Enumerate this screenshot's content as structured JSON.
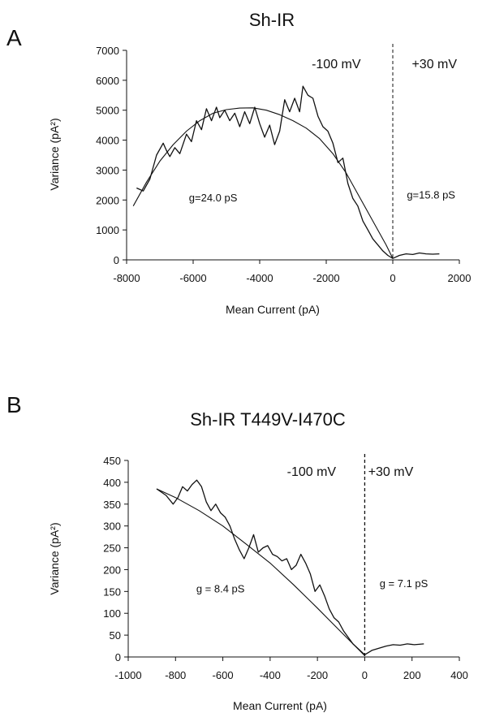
{
  "chart_data": [
    {
      "panel_label": "A",
      "type": "line",
      "title": "Sh-IR",
      "xlabel": "Mean Current (pA)",
      "ylabel": "Variance (pA²)",
      "xlim": [
        -8000,
        2000
      ],
      "ylim": [
        0,
        7000
      ],
      "xticks": [
        -8000,
        -6000,
        -4000,
        -2000,
        0,
        2000
      ],
      "yticks": [
        0,
        1000,
        2000,
        3000,
        4000,
        5000,
        6000,
        7000
      ],
      "xtick_labels": [
        "-8000",
        "-6000",
        "-4000",
        "-2000",
        "0",
        "2000"
      ],
      "ytick_labels": [
        "0",
        "1000",
        "2000",
        "3000",
        "4000",
        "5000",
        "6000",
        "7000"
      ],
      "grid": false,
      "vline_x": 0,
      "annotations": [
        {
          "text": "-100 mV",
          "x": -1700,
          "y": 6400
        },
        {
          "text": "+30 mV",
          "x": 1250,
          "y": 6400
        },
        {
          "text": "g=24.0 pS",
          "x": -5400,
          "y": 1950
        },
        {
          "text": "g=15.8 pS",
          "x": 1150,
          "y": 2050
        }
      ],
      "series": [
        {
          "kind": "data",
          "points": [
            [
              -7700,
              2400
            ],
            [
              -7500,
              2300
            ],
            [
              -7300,
              2700
            ],
            [
              -7100,
              3500
            ],
            [
              -6900,
              3900
            ],
            [
              -6800,
              3650
            ],
            [
              -6700,
              3450
            ],
            [
              -6550,
              3750
            ],
            [
              -6400,
              3550
            ],
            [
              -6200,
              4200
            ],
            [
              -6050,
              3950
            ],
            [
              -5900,
              4650
            ],
            [
              -5750,
              4350
            ],
            [
              -5600,
              5050
            ],
            [
              -5450,
              4650
            ],
            [
              -5300,
              5100
            ],
            [
              -5200,
              4750
            ],
            [
              -5050,
              5000
            ],
            [
              -4900,
              4650
            ],
            [
              -4750,
              4900
            ],
            [
              -4600,
              4450
            ],
            [
              -4450,
              4950
            ],
            [
              -4300,
              4550
            ],
            [
              -4150,
              5100
            ],
            [
              -4000,
              4550
            ],
            [
              -3850,
              4100
            ],
            [
              -3700,
              4500
            ],
            [
              -3550,
              3850
            ],
            [
              -3400,
              4300
            ],
            [
              -3250,
              5350
            ],
            [
              -3100,
              4950
            ],
            [
              -2950,
              5400
            ],
            [
              -2800,
              4950
            ],
            [
              -2700,
              5800
            ],
            [
              -2550,
              5500
            ],
            [
              -2400,
              5400
            ],
            [
              -2250,
              4800
            ],
            [
              -2100,
              4450
            ],
            [
              -1950,
              4300
            ],
            [
              -1800,
              3900
            ],
            [
              -1650,
              3250
            ],
            [
              -1500,
              3400
            ],
            [
              -1350,
              2550
            ],
            [
              -1200,
              2050
            ],
            [
              -1050,
              1800
            ],
            [
              -900,
              1300
            ],
            [
              -750,
              1000
            ],
            [
              -600,
              700
            ],
            [
              -450,
              500
            ],
            [
              -300,
              300
            ],
            [
              -150,
              150
            ],
            [
              0,
              50
            ],
            [
              200,
              150
            ],
            [
              400,
              200
            ],
            [
              600,
              180
            ],
            [
              800,
              230
            ],
            [
              1000,
              200
            ],
            [
              1200,
              190
            ],
            [
              1400,
              200
            ]
          ]
        },
        {
          "kind": "fit",
          "points": [
            [
              -7800,
              1800
            ],
            [
              -7400,
              2600
            ],
            [
              -7000,
              3300
            ],
            [
              -6600,
              3850
            ],
            [
              -6200,
              4300
            ],
            [
              -5800,
              4650
            ],
            [
              -5400,
              4900
            ],
            [
              -5000,
              5020
            ],
            [
              -4600,
              5070
            ],
            [
              -4200,
              5080
            ],
            [
              -3800,
              5000
            ],
            [
              -3400,
              4850
            ],
            [
              -3000,
              4650
            ],
            [
              -2600,
              4400
            ],
            [
              -2200,
              4050
            ],
            [
              -1800,
              3550
            ],
            [
              -1400,
              2900
            ],
            [
              -1000,
              2100
            ],
            [
              -600,
              1300
            ],
            [
              -200,
              500
            ],
            [
              0,
              50
            ]
          ]
        }
      ]
    },
    {
      "panel_label": "B",
      "type": "line",
      "title": "Sh-IR T449V-I470C",
      "xlabel": "Mean Current (pA)",
      "ylabel": "Variance (pA²)",
      "xlim": [
        -1000,
        400
      ],
      "ylim": [
        0,
        450
      ],
      "xticks": [
        -1000,
        -800,
        -600,
        -400,
        -200,
        0,
        200,
        400
      ],
      "yticks": [
        0,
        50,
        100,
        150,
        200,
        250,
        300,
        350,
        400,
        450
      ],
      "xtick_labels": [
        "-1000",
        "-800",
        "-600",
        "-400",
        "-200",
        "0",
        "200",
        "400"
      ],
      "ytick_labels": [
        "0",
        "50",
        "100",
        "150",
        "200",
        "250",
        "300",
        "350",
        "400",
        "450"
      ],
      "grid": false,
      "vline_x": 0,
      "annotations": [
        {
          "text": "-100 mV",
          "x": -225,
          "y": 415
        },
        {
          "text": "+30 mV",
          "x": 110,
          "y": 415
        },
        {
          "text": "g = 8.4 pS",
          "x": -610,
          "y": 148
        },
        {
          "text": "g = 7.1 pS",
          "x": 165,
          "y": 160
        }
      ],
      "series": [
        {
          "kind": "data",
          "points": [
            [
              -880,
              385
            ],
            [
              -840,
              370
            ],
            [
              -810,
              350
            ],
            [
              -790,
              365
            ],
            [
              -770,
              390
            ],
            [
              -750,
              380
            ],
            [
              -730,
              395
            ],
            [
              -710,
              405
            ],
            [
              -690,
              390
            ],
            [
              -670,
              355
            ],
            [
              -650,
              335
            ],
            [
              -630,
              350
            ],
            [
              -610,
              330
            ],
            [
              -590,
              320
            ],
            [
              -570,
              300
            ],
            [
              -550,
              270
            ],
            [
              -530,
              245
            ],
            [
              -510,
              225
            ],
            [
              -490,
              250
            ],
            [
              -470,
              280
            ],
            [
              -450,
              240
            ],
            [
              -430,
              250
            ],
            [
              -410,
              255
            ],
            [
              -390,
              235
            ],
            [
              -370,
              230
            ],
            [
              -350,
              220
            ],
            [
              -330,
              225
            ],
            [
              -310,
              200
            ],
            [
              -290,
              210
            ],
            [
              -270,
              235
            ],
            [
              -250,
              215
            ],
            [
              -230,
              190
            ],
            [
              -210,
              150
            ],
            [
              -190,
              165
            ],
            [
              -170,
              140
            ],
            [
              -150,
              110
            ],
            [
              -130,
              90
            ],
            [
              -110,
              80
            ],
            [
              -90,
              60
            ],
            [
              -70,
              45
            ],
            [
              -50,
              30
            ],
            [
              -30,
              20
            ],
            [
              -10,
              10
            ],
            [
              0,
              5
            ],
            [
              30,
              15
            ],
            [
              60,
              20
            ],
            [
              90,
              25
            ],
            [
              120,
              28
            ],
            [
              150,
              27
            ],
            [
              180,
              30
            ],
            [
              210,
              28
            ],
            [
              250,
              30
            ]
          ]
        },
        {
          "kind": "fit",
          "points": [
            [
              -880,
              385
            ],
            [
              -800,
              365
            ],
            [
              -700,
              335
            ],
            [
              -600,
              300
            ],
            [
              -500,
              258
            ],
            [
              -400,
              215
            ],
            [
              -300,
              165
            ],
            [
              -200,
              112
            ],
            [
              -100,
              57
            ],
            [
              0,
              3
            ]
          ]
        }
      ]
    }
  ]
}
